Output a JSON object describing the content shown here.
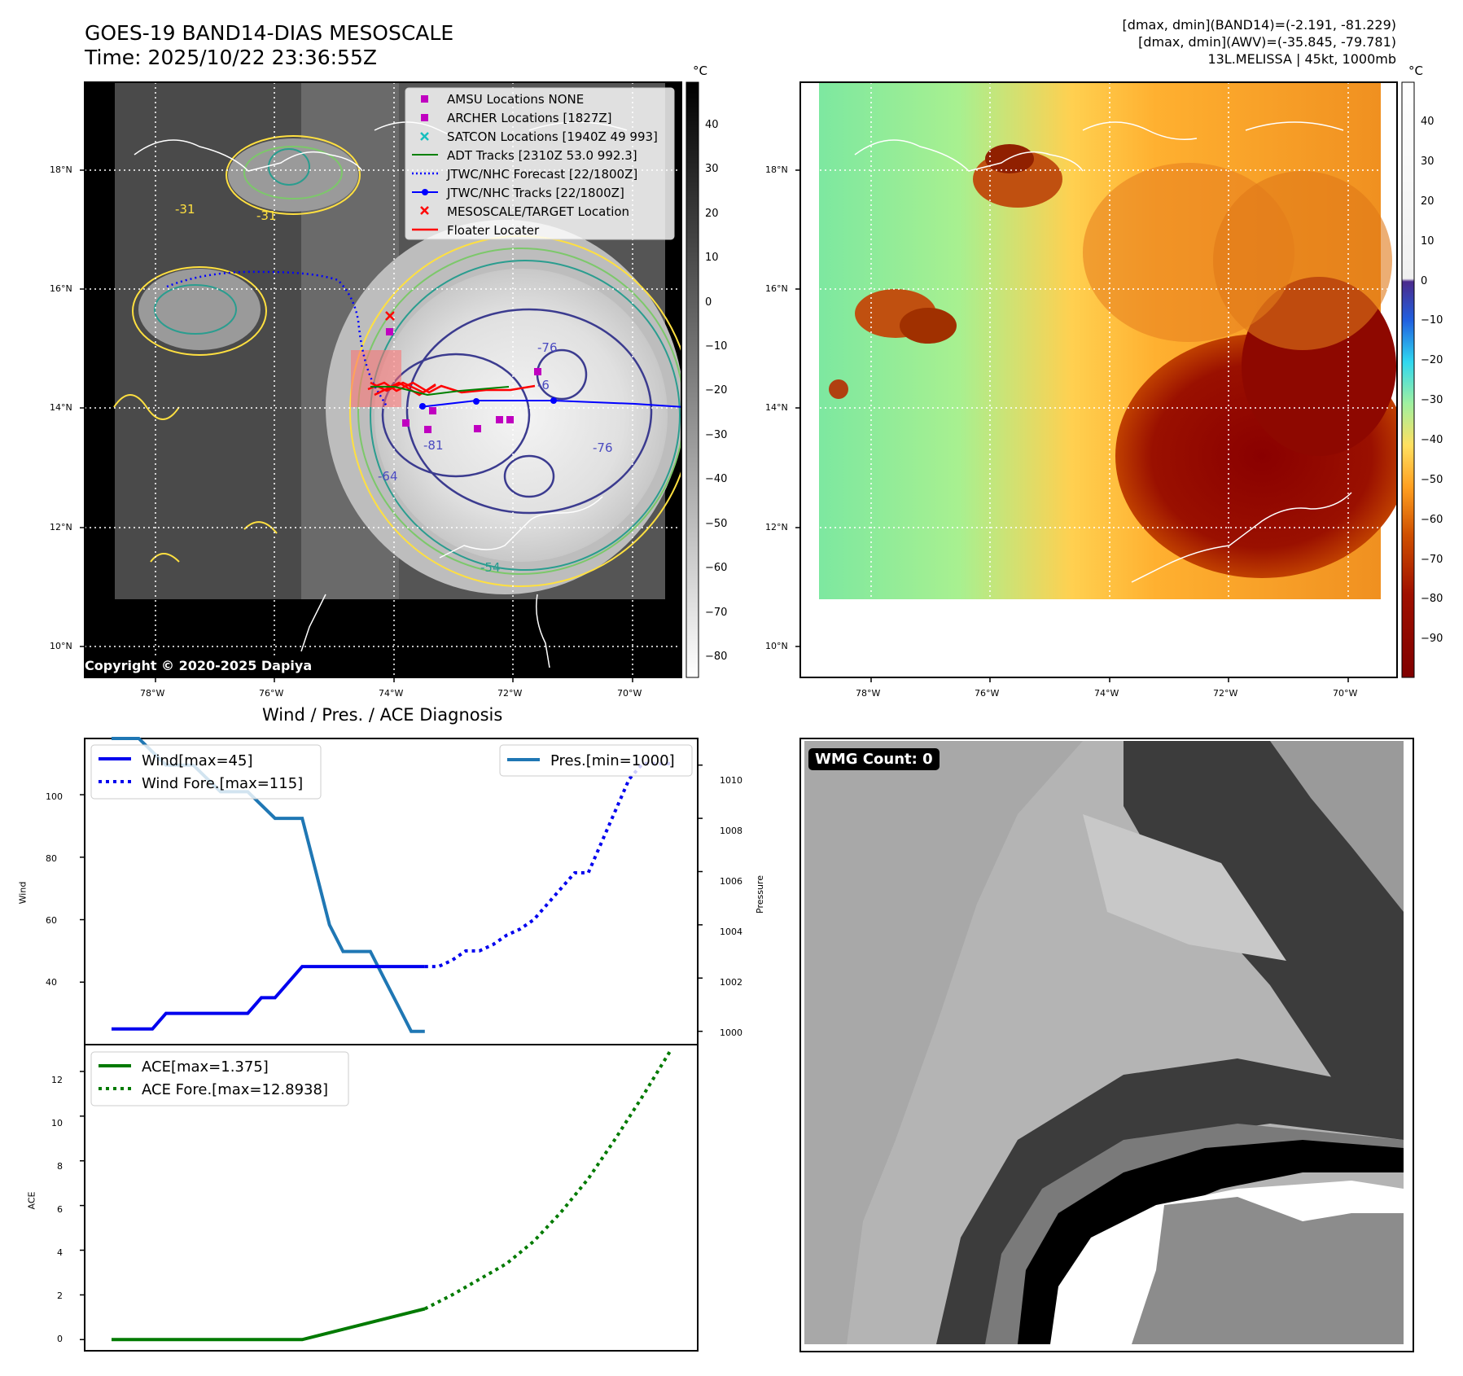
{
  "header": {
    "title_line1": "GOES-19 BAND14-DIAS MESOSCALE",
    "title_line2": "Time: 2025/10/22 23:36:55Z",
    "stats_line1": "[dmax, dmin](BAND14)=(-2.191, -81.229)",
    "stats_line2": "[dmax, dmin](AWV)=(-35.845, -79.781)",
    "stats_line3": "13L.MELISSA | 45kt, 1000mb"
  },
  "map": {
    "lon_ticks": [
      "78°W",
      "76°W",
      "74°W",
      "72°W",
      "70°W"
    ],
    "lat_ticks": [
      "18°N",
      "16°N",
      "14°N",
      "12°N",
      "10°N"
    ],
    "copyright": "Copyright © 2020-2025 Dapiya",
    "contour_labels": [
      "-76",
      "-81",
      "-76",
      "-64",
      "-54",
      "-31",
      "-31",
      "-6"
    ],
    "legend": [
      {
        "label": "AMSU Locations NONE",
        "color": "#c000c0",
        "marker": "square"
      },
      {
        "label": "ARCHER Locations [1827Z]",
        "color": "#c000c0",
        "marker": "square"
      },
      {
        "label": "SATCON Locations [1940Z 49 993]",
        "color": "#17bebe",
        "marker": "x"
      },
      {
        "label": "ADT Tracks [2310Z 53.0 992.3]",
        "color": "#008000",
        "marker": "line"
      },
      {
        "label": "JTWC/NHC Forecast [22/1800Z]",
        "color": "#0000ff",
        "marker": "dotted"
      },
      {
        "label": "JTWC/NHC Tracks [22/1800Z]",
        "color": "#0000ff",
        "marker": "dotline"
      },
      {
        "label": "MESOSCALE/TARGET Location",
        "color": "#ff0000",
        "marker": "x"
      },
      {
        "label": "Floater Locater",
        "color": "#ff0000",
        "marker": "line"
      }
    ]
  },
  "colorbar_left": {
    "unit": "°C",
    "ticks": [
      "40",
      "30",
      "20",
      "10",
      "0",
      "−10",
      "−20",
      "−30",
      "−40",
      "−50",
      "−60",
      "−70",
      "−80"
    ]
  },
  "colorbar_right": {
    "unit": "°C",
    "ticks": [
      "40",
      "30",
      "20",
      "10",
      "0",
      "−10",
      "−20",
      "−30",
      "−40",
      "−50",
      "−60",
      "−70",
      "−80",
      "−90"
    ]
  },
  "wmg": {
    "label": "WMG Count: 0"
  },
  "chart_data": [
    {
      "type": "line",
      "title": "Wind / Pres. / ACE Diagnosis",
      "ylabel": "Wind",
      "ylabel_right": "Pressure",
      "ylim": [
        20,
        118
      ],
      "ylim_right": [
        999.5,
        1011
      ],
      "yticks": [
        "40",
        "60",
        "80",
        "100"
      ],
      "yticks_right": [
        "1000",
        "1002",
        "1004",
        "1006",
        "1008",
        "1010"
      ],
      "series": [
        {
          "name": "Wind[max=45]",
          "color": "#0000ee",
          "style": "solid",
          "x": [
            0,
            3,
            4,
            6,
            8,
            9,
            10,
            11,
            12,
            14,
            15,
            16,
            17,
            18,
            19,
            20,
            21,
            22,
            23
          ],
          "values": [
            25,
            25,
            30,
            30,
            30,
            30,
            30,
            35,
            35,
            45,
            45,
            45,
            45,
            45,
            45,
            45,
            45,
            45,
            45
          ]
        },
        {
          "name": "Wind Fore.[max=115]",
          "color": "#0000ee",
          "style": "dotted",
          "x": [
            23,
            24,
            25,
            26,
            27,
            28,
            29,
            30,
            31,
            32,
            33,
            34,
            35,
            36,
            37,
            38,
            39,
            40,
            41
          ],
          "values": [
            45,
            45,
            47,
            50,
            50,
            52,
            55,
            57,
            60,
            65,
            70,
            75,
            75,
            85,
            95,
            105,
            110,
            110,
            110
          ]
        },
        {
          "name": "Pres.[min=1000]",
          "color": "#1f77b4",
          "style": "solid",
          "axis": "right",
          "x": [
            0,
            2,
            4,
            6,
            8,
            10,
            12,
            14,
            15,
            16,
            17,
            18,
            19,
            20,
            21,
            22,
            23
          ],
          "values": [
            1011,
            1011,
            1010,
            1010,
            1009,
            1009,
            1008,
            1008,
            1006,
            1004,
            1003,
            1003,
            1003,
            1002,
            1001,
            1000,
            1000
          ]
        }
      ]
    },
    {
      "type": "line",
      "ylabel": "ACE",
      "ylim": [
        -0.5,
        13.2
      ],
      "yticks": [
        "0",
        "2",
        "4",
        "6",
        "8",
        "10",
        "12"
      ],
      "series": [
        {
          "name": "ACE[max=1.375]",
          "color": "#007a00",
          "style": "solid",
          "x": [
            0,
            14,
            23
          ],
          "values": [
            0,
            0,
            1.375
          ]
        },
        {
          "name": "ACE Fore.[max=12.8938]",
          "color": "#007a00",
          "style": "dotted",
          "x": [
            23,
            25,
            27,
            29,
            31,
            33,
            35,
            37,
            39,
            41
          ],
          "values": [
            1.375,
            2.0,
            2.7,
            3.4,
            4.4,
            5.7,
            7.2,
            9.0,
            10.9,
            12.9
          ]
        }
      ]
    }
  ]
}
